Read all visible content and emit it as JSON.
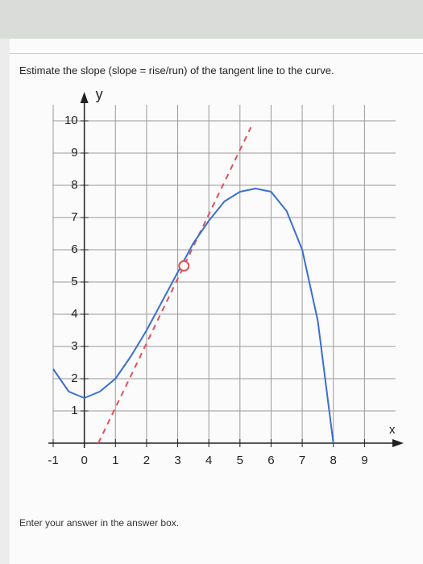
{
  "question": "Estimate the slope (slope = rise/run) of the tangent line to the curve.",
  "instruction": "Enter your answer in the answer box.",
  "chart_data": {
    "type": "line",
    "xlabel": "x",
    "ylabel": "y",
    "xlim": [
      -1,
      10
    ],
    "ylim": [
      0,
      10.5
    ],
    "xticks": [
      -1,
      0,
      1,
      2,
      3,
      4,
      5,
      6,
      7,
      8,
      9
    ],
    "yticks": [
      1,
      2,
      3,
      4,
      5,
      6,
      7,
      8,
      9,
      10
    ],
    "grid": true,
    "curve": {
      "color": "#3a6fd0",
      "x": [
        -1,
        -0.5,
        0,
        0.5,
        1,
        1.5,
        2,
        2.5,
        3,
        3.5,
        4,
        4.5,
        5,
        5.5,
        6,
        6.5,
        7,
        7.5,
        8
      ],
      "y": [
        2.3,
        1.6,
        1.4,
        1.6,
        2.0,
        2.7,
        3.5,
        4.4,
        5.3,
        6.2,
        6.9,
        7.5,
        7.8,
        7.9,
        7.8,
        7.2,
        6.0,
        3.8,
        0
      ]
    },
    "tangent": {
      "color": "#e0505a",
      "x": [
        0.45,
        5.35
      ],
      "y": [
        0,
        9.8
      ]
    },
    "point": {
      "x": 3.2,
      "y": 5.5,
      "color": "#e0505a"
    }
  }
}
